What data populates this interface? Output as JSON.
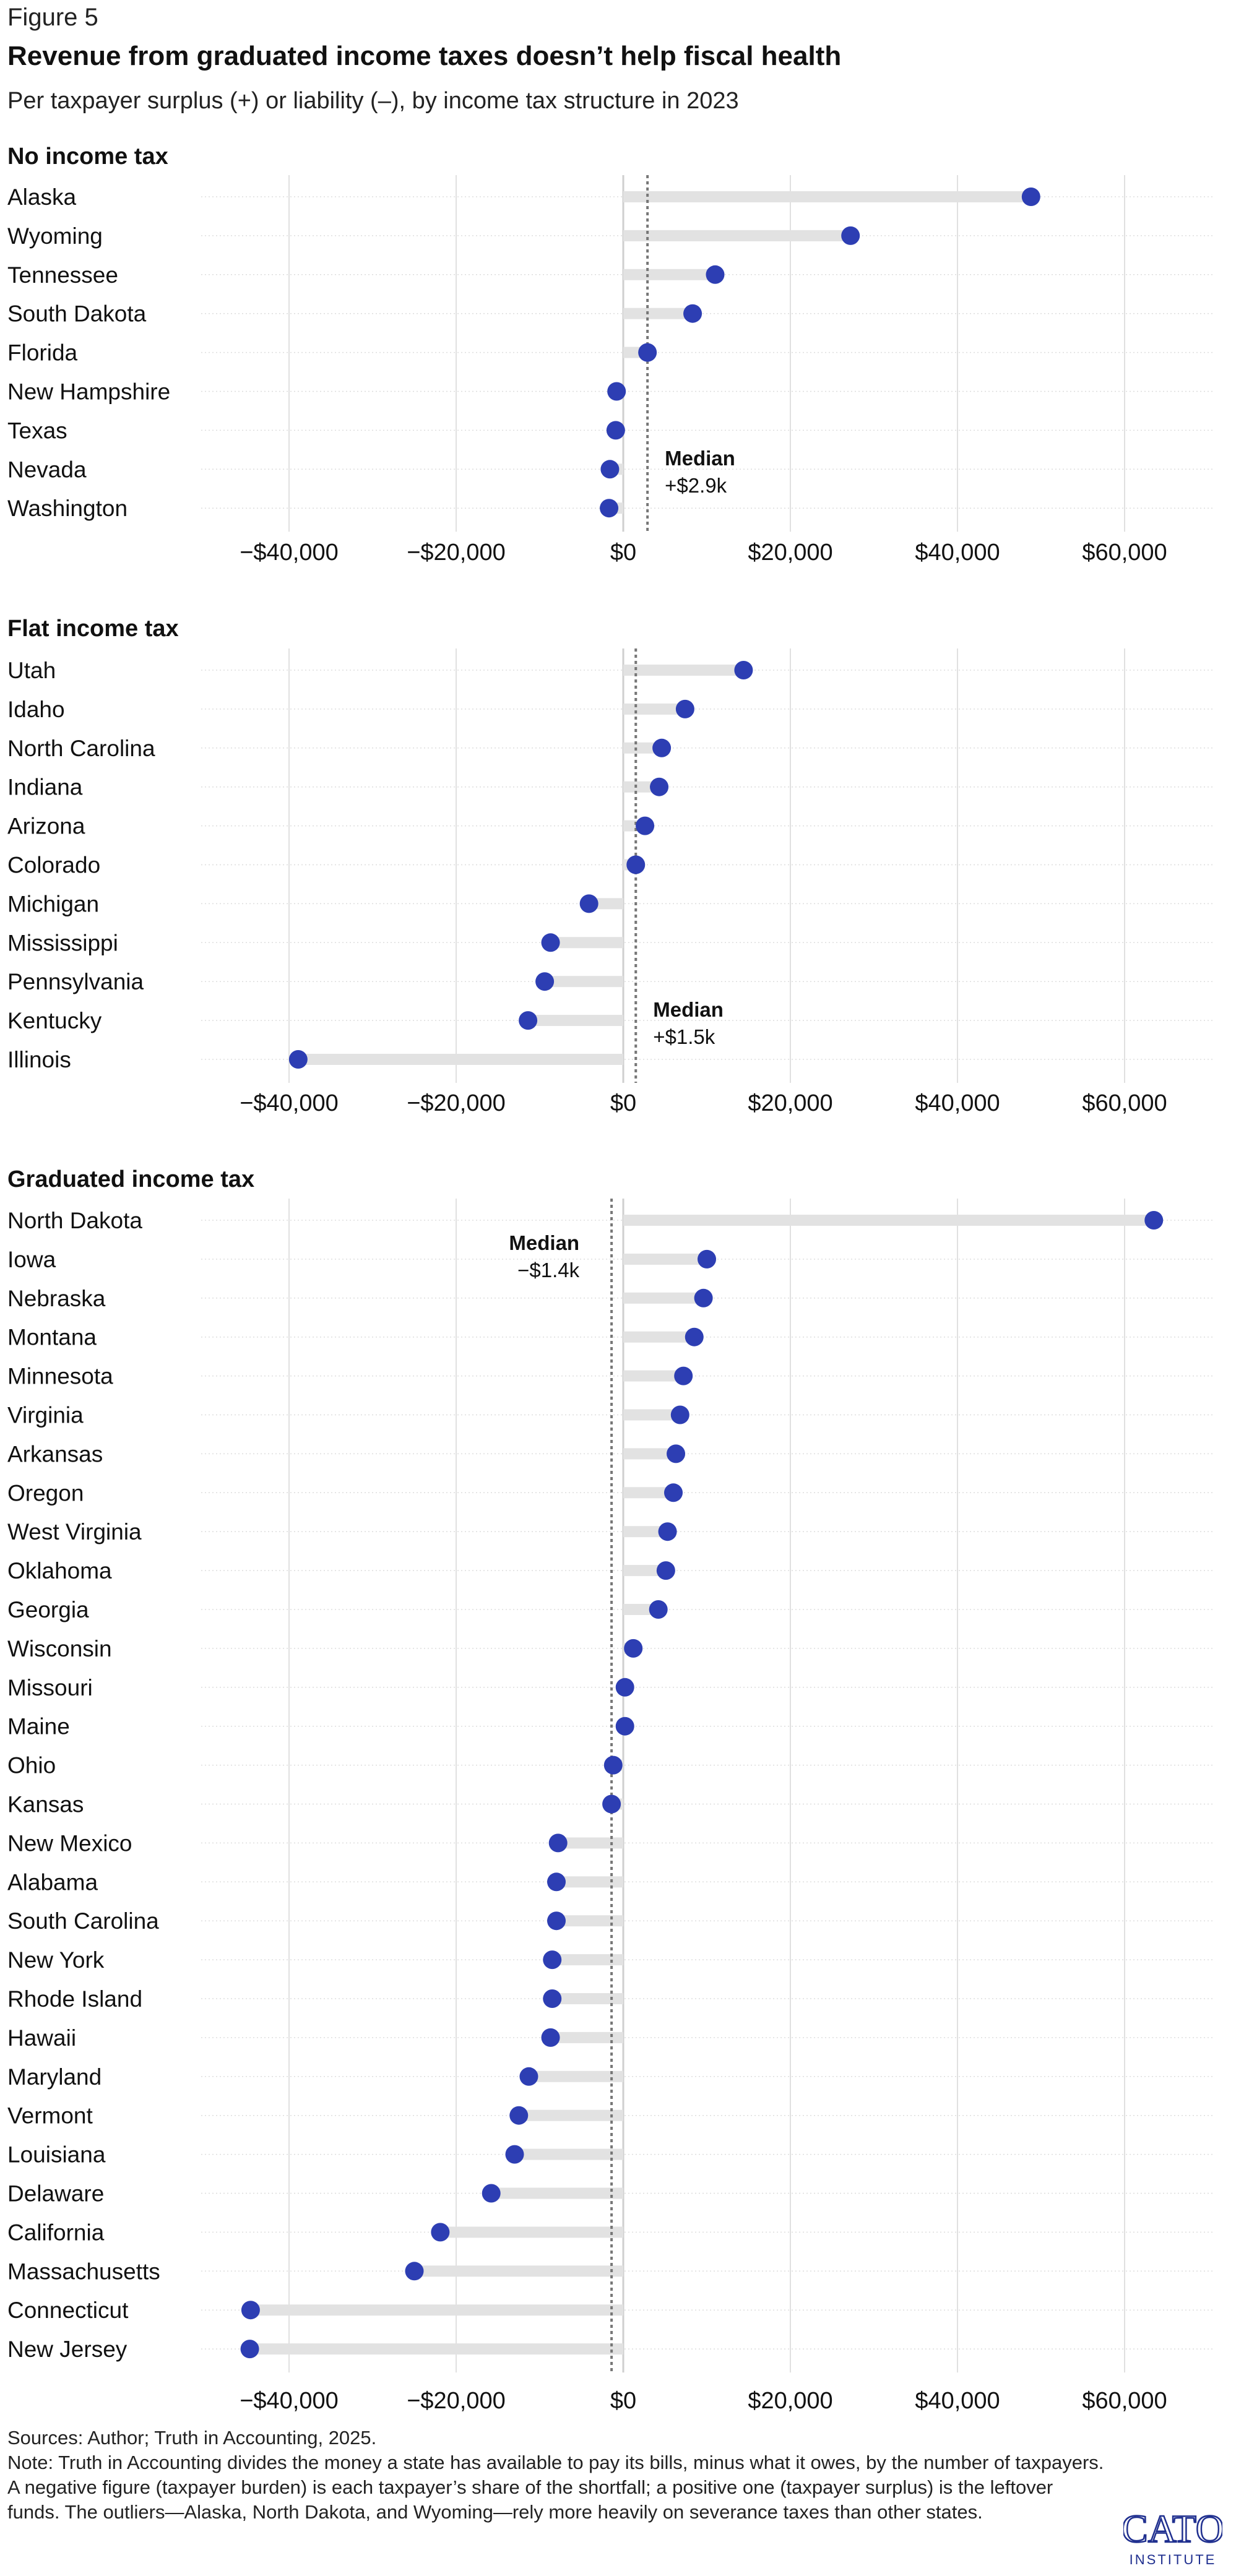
{
  "figure_label": "Figure 5",
  "title": "Revenue from graduated income taxes doesn’t help fiscal health",
  "subtitle": "Per taxpayer surplus (+) or liability (–), by income tax structure in 2023",
  "footer": {
    "sources": "Sources: Author; Truth in Accounting, 2025.",
    "note": "Note: Truth in Accounting divides the money a state has available to pay its bills, minus what it owes, by the number of taxpayers. A negative figure (taxpayer burden) is each taxpayer’s share of the shortfall; a positive one (taxpayer surplus) is the leftover funds. The outliers—Alaska, North Dakota, and Wyoming—rely more heavily on severance taxes than other states."
  },
  "logo": {
    "text_top": "CATO",
    "text_bottom": "INSTITUTE",
    "color": "#1f2f8f"
  },
  "colors": {
    "dot": "#2d3eb3",
    "stem": "#e2e2e2",
    "grid": "#e0e0e0",
    "median": "#777777",
    "text": "#111111"
  },
  "chart_data": [
    {
      "type": "dot-plot",
      "panel_title": "No income tax",
      "xlim": [
        -50000,
        70000
      ],
      "xticks": [
        -40000,
        -20000,
        0,
        20000,
        40000,
        60000
      ],
      "xtick_labels": [
        "−$40,000",
        "−$20,000",
        "$0",
        "$20,000",
        "$40,000",
        "$60,000"
      ],
      "grid": true,
      "median": {
        "value": 2900,
        "label": "Median",
        "value_label": "+$2.9k"
      },
      "categories": [
        "Alaska",
        "Wyoming",
        "Tennessee",
        "South Dakota",
        "Florida",
        "New Hampshire",
        "Texas",
        "Nevada",
        "Washington"
      ],
      "values": [
        48800,
        27200,
        11000,
        8300,
        2900,
        -800,
        -900,
        -1600,
        -1700
      ]
    },
    {
      "type": "dot-plot",
      "panel_title": "Flat income tax",
      "xlim": [
        -50000,
        70000
      ],
      "xticks": [
        -40000,
        -20000,
        0,
        20000,
        40000,
        60000
      ],
      "xtick_labels": [
        "−$40,000",
        "−$20,000",
        "$0",
        "$20,000",
        "$40,000",
        "$60,000"
      ],
      "grid": true,
      "median": {
        "value": 1500,
        "label": "Median",
        "value_label": "+$1.5k"
      },
      "categories": [
        "Utah",
        "Idaho",
        "North Carolina",
        "Indiana",
        "Arizona",
        "Colorado",
        "Michigan",
        "Mississippi",
        "Pennsylvania",
        "Kentucky",
        "Illinois"
      ],
      "values": [
        14400,
        7400,
        4600,
        4300,
        2600,
        1500,
        -4100,
        -8700,
        -9400,
        -11400,
        -38900
      ]
    },
    {
      "type": "dot-plot",
      "panel_title": "Graduated income tax",
      "xlim": [
        -50000,
        70000
      ],
      "xticks": [
        -40000,
        -20000,
        0,
        20000,
        40000,
        60000
      ],
      "xtick_labels": [
        "−$40,000",
        "−$20,000",
        "$0",
        "$20,000",
        "$40,000",
        "$60,000"
      ],
      "grid": true,
      "median": {
        "value": -1400,
        "label": "Median",
        "value_label": "−$1.4k"
      },
      "categories": [
        "North Dakota",
        "Iowa",
        "Nebraska",
        "Montana",
        "Minnesota",
        "Virginia",
        "Arkansas",
        "Oregon",
        "West Virginia",
        "Oklahoma",
        "Georgia",
        "Wisconsin",
        "Missouri",
        "Maine",
        "Ohio",
        "Kansas",
        "New Mexico",
        "Alabama",
        "South Carolina",
        "New York",
        "Rhode Island",
        "Hawaii",
        "Maryland",
        "Vermont",
        "Louisiana",
        "Delaware",
        "California",
        "Massachusetts",
        "Connecticut",
        "New Jersey"
      ],
      "values": [
        63500,
        10000,
        9600,
        8500,
        7200,
        6800,
        6300,
        6000,
        5300,
        5100,
        4200,
        1200,
        200,
        200,
        -1200,
        -1400,
        -7800,
        -8000,
        -8000,
        -8500,
        -8500,
        -8700,
        -11300,
        -12500,
        -13000,
        -15800,
        -21900,
        -25000,
        -44600,
        -44700
      ]
    }
  ]
}
